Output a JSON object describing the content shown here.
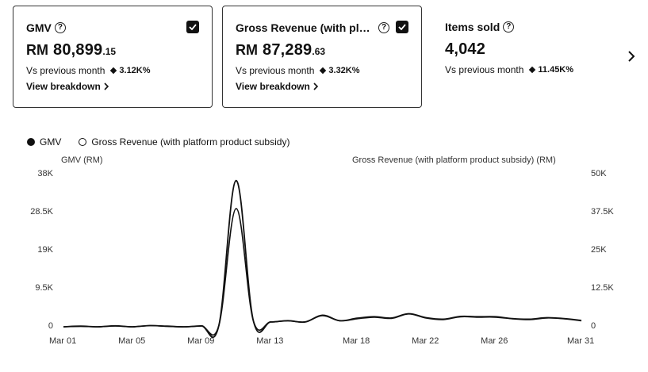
{
  "cards": [
    {
      "title": "GMV",
      "currency": "RM",
      "value_main": "80,899",
      "value_cents": ".15",
      "compare_label": "Vs previous month",
      "compare_pct": "3.12K%",
      "link": "View breakdown",
      "checked": true
    },
    {
      "title": "Gross Revenue (with plat…",
      "currency": "RM",
      "value_main": "87,289",
      "value_cents": ".63",
      "compare_label": "Vs previous month",
      "compare_pct": "3.32K%",
      "link": "View breakdown",
      "checked": true
    },
    {
      "title": "Items sold",
      "value_main": "4,042",
      "compare_label": "Vs previous month",
      "compare_pct": "11.45K%"
    }
  ],
  "icons": {
    "help": "question-circle-icon",
    "check": "checkbox-checked-icon",
    "next": "chevron-right-icon",
    "increase": "diamond-up-icon"
  },
  "legend": {
    "series_1": "GMV",
    "series_2": "Gross Revenue (with platform product subsidy)"
  },
  "chart_data": {
    "type": "line",
    "left_axis_label": "GMV (RM)",
    "right_axis_label": "Gross Revenue (with platform product subsidy) (RM)",
    "left_ticks": [
      "38K",
      "28.5K",
      "19K",
      "9.5K",
      "0"
    ],
    "right_ticks": [
      "50K",
      "37.5K",
      "25K",
      "12.5K",
      "0"
    ],
    "x_ticks": [
      "Mar 01",
      "Mar 05",
      "Mar 09",
      "Mar 13",
      "Mar 18",
      "Mar 22",
      "Mar 26",
      "Mar 31"
    ],
    "ylim_left": [
      0,
      38000
    ],
    "ylim_right": [
      0,
      50000
    ],
    "series": [
      {
        "name": "GMV",
        "axis": "left",
        "values": [
          0,
          100,
          0,
          200,
          0,
          300,
          100,
          0,
          200,
          300,
          29500,
          1500,
          1200,
          1500,
          1200,
          2800,
          1500,
          2000,
          2400,
          2100,
          3200,
          2200,
          1800,
          2500,
          2400,
          2400,
          2000,
          1800,
          2200,
          2000,
          1500
        ]
      },
      {
        "name": "Gross Revenue (with platform product subsidy)",
        "axis": "right",
        "values": [
          0,
          200,
          0,
          300,
          0,
          400,
          200,
          0,
          300,
          400,
          48000,
          2000,
          1600,
          2000,
          1600,
          3800,
          2000,
          2800,
          3300,
          2900,
          4300,
          3000,
          2500,
          3400,
          3300,
          3300,
          2700,
          2500,
          3000,
          2700,
          2100
        ]
      }
    ]
  }
}
